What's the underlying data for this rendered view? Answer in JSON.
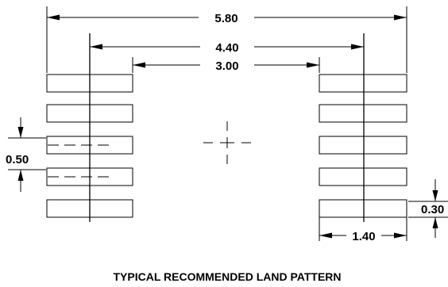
{
  "dimensions": {
    "overall_width": "5.80",
    "center_to_center": "4.40",
    "inner_gap": "3.00",
    "pitch": "0.50",
    "pad_width": "0.30",
    "pad_length": "1.40"
  },
  "caption": "TYPICAL RECOMMENDED LAND PATTERN"
}
